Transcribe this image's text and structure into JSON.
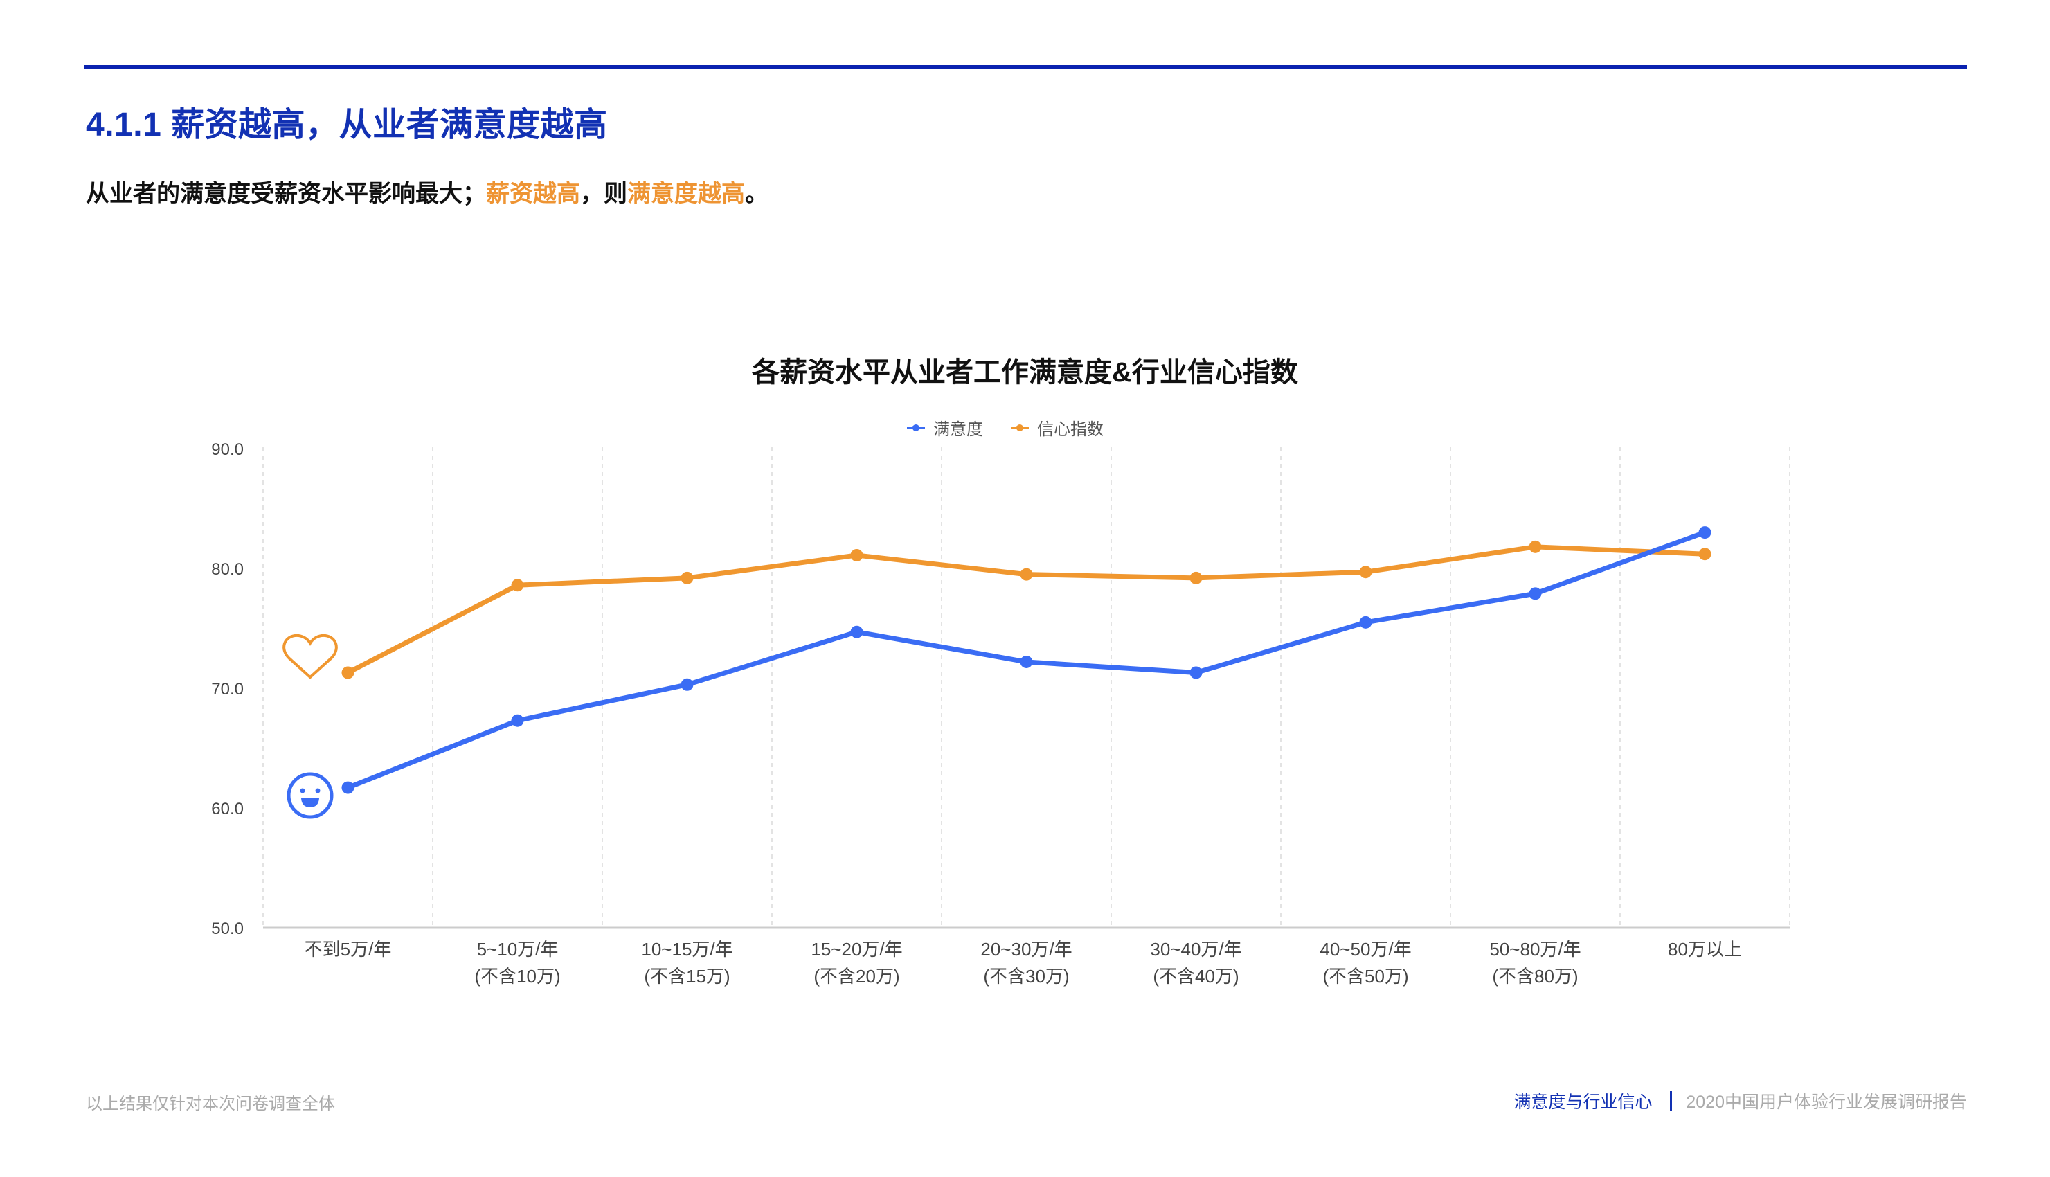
{
  "header": {
    "title": "4.1.1 薪资越高，从业者满意度越高",
    "subtitle_parts": [
      {
        "text": "从业者的满意度受薪资水平影响最大；",
        "highlight": false
      },
      {
        "text": "薪资越高",
        "highlight": true
      },
      {
        "text": "，则",
        "highlight": false
      },
      {
        "text": "满意度越高",
        "highlight": true
      },
      {
        "text": "。",
        "highlight": false
      }
    ]
  },
  "colors": {
    "brand_blue": "#1231b3",
    "highlight_orange": "#ee9433",
    "series_satisfaction": "#3a6cf4",
    "series_confidence": "#f0972f"
  },
  "legend": {
    "satisfaction": "满意度",
    "confidence": "信心指数"
  },
  "icons": {
    "satisfaction": "smiley-face-icon",
    "confidence": "heart-outline-icon"
  },
  "footer": {
    "note": "以上结果仅针对本次问卷调查全体",
    "section": "满意度与行业信心",
    "report": "2020中国用户体验行业发展调研报告"
  },
  "chart_data": {
    "type": "line",
    "title": "各薪资水平从业者工作满意度&行业信心指数",
    "xlabel": "",
    "ylabel": "",
    "ylim": [
      50,
      90
    ],
    "yticks": [
      "50.0",
      "60.0",
      "70.0",
      "80.0",
      "90.0"
    ],
    "grid": {
      "vertical_dashed": true,
      "horizontal": false
    },
    "legend_position": "top-center",
    "categories": [
      [
        "不到5万/年",
        ""
      ],
      [
        "5~10万/年",
        "(不含10万)"
      ],
      [
        "10~15万/年",
        "(不含15万)"
      ],
      [
        "15~20万/年",
        "(不含20万)"
      ],
      [
        "20~30万/年",
        "(不含30万)"
      ],
      [
        "30~40万/年",
        "(不含40万)"
      ],
      [
        "40~50万/年",
        "(不含50万)"
      ],
      [
        "50~80万/年",
        "(不含80万)"
      ],
      [
        "80万以上",
        ""
      ]
    ],
    "series": [
      {
        "name": "满意度",
        "color": "#3a6cf4",
        "values": [
          61.7,
          67.3,
          70.3,
          74.7,
          72.2,
          71.3,
          75.5,
          77.9,
          83.0
        ]
      },
      {
        "name": "信心指数",
        "color": "#f0972f",
        "values": [
          71.3,
          78.6,
          79.2,
          81.1,
          79.5,
          79.2,
          79.7,
          81.8,
          81.2
        ]
      }
    ]
  }
}
